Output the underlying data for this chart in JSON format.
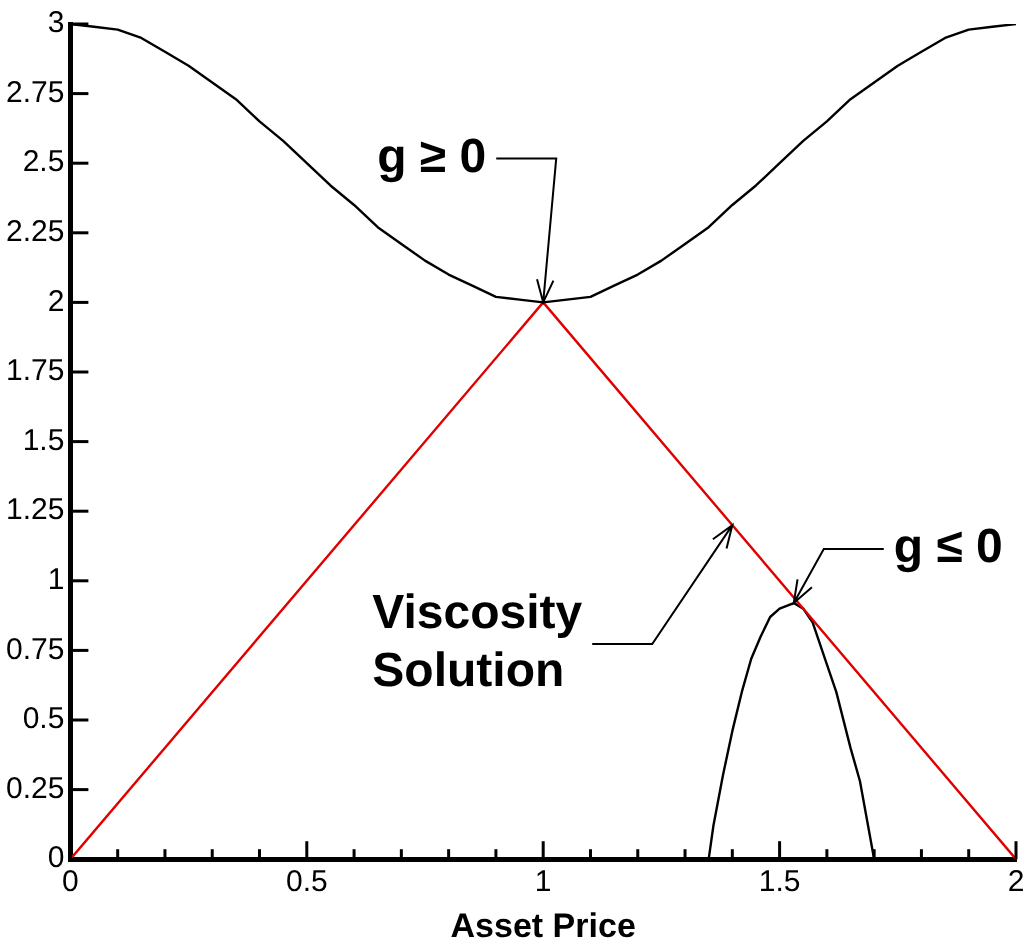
{
  "chart_data": {
    "type": "line",
    "xlabel": "Asset Price",
    "xlim": [
      0,
      2
    ],
    "ylim": [
      0,
      3
    ],
    "xticks": [
      0,
      {
        "value": 0.1,
        "label": null
      },
      {
        "value": 0.2,
        "label": null
      },
      {
        "value": 0.3,
        "label": null
      },
      {
        "value": 0.4,
        "label": null
      },
      0.5,
      {
        "value": 0.6,
        "label": null
      },
      {
        "value": 0.7,
        "label": null
      },
      {
        "value": 0.8,
        "label": null
      },
      {
        "value": 0.9,
        "label": null
      },
      1,
      {
        "value": 1.1,
        "label": null
      },
      {
        "value": 1.2,
        "label": null
      },
      {
        "value": 1.3,
        "label": null
      },
      {
        "value": 1.4,
        "label": null
      },
      1.5,
      {
        "value": 1.6,
        "label": null
      },
      {
        "value": 1.7,
        "label": null
      },
      {
        "value": 1.8,
        "label": null
      },
      {
        "value": 1.9,
        "label": null
      },
      2
    ],
    "yticks": [
      0,
      0.25,
      0.5,
      0.75,
      1,
      1.25,
      1.5,
      1.75,
      2,
      2.25,
      2.5,
      2.75,
      3
    ],
    "series": [
      {
        "color": "#000000",
        "x": [
          0,
          0.05,
          0.1,
          0.15,
          0.2,
          0.25,
          0.3,
          0.35,
          0.4,
          0.45,
          0.5,
          0.55,
          0.6,
          0.65,
          0.7,
          0.75,
          0.8,
          0.85,
          0.9,
          0.95,
          1,
          1.05,
          1.1,
          1.15,
          1.2,
          1.25,
          1.3,
          1.35,
          1.4,
          1.45,
          1.5,
          1.55,
          1.6,
          1.65,
          1.7,
          1.75,
          1.8,
          1.85,
          1.9,
          1.95,
          2
        ],
        "values": [
          3,
          2.99,
          2.98,
          2.95,
          2.9,
          2.85,
          2.79,
          2.73,
          2.65,
          2.58,
          2.5,
          2.42,
          2.35,
          2.27,
          2.21,
          2.15,
          2.1,
          2.06,
          2.02,
          2.01,
          2,
          2.01,
          2.02,
          2.06,
          2.1,
          2.15,
          2.21,
          2.27,
          2.35,
          2.42,
          2.5,
          2.58,
          2.65,
          2.73,
          2.79,
          2.85,
          2.9,
          2.95,
          2.98,
          2.99,
          3
        ]
      },
      {
        "color": "#e00000",
        "x": [
          0,
          1,
          2
        ],
        "values": [
          0,
          2,
          0
        ]
      },
      {
        "color": "#000000",
        "x": [
          1.35,
          1.36,
          1.38,
          1.4,
          1.42,
          1.44,
          1.46,
          1.48,
          1.5,
          1.53,
          1.55,
          1.57,
          1.6,
          1.62,
          1.65,
          1.67,
          1.7
        ],
        "values": [
          0,
          0.12,
          0.3,
          0.46,
          0.6,
          0.72,
          0.8,
          0.87,
          0.9,
          0.92,
          0.9,
          0.85,
          0.7,
          0.6,
          0.4,
          0.28,
          0
        ]
      }
    ],
    "annotations": [
      {
        "text": "g ≥ 0",
        "x": 1,
        "y": 2
      },
      {
        "text": "Viscosity Solution",
        "x": 1.4,
        "y": 1.2
      },
      {
        "text": "g ≤ 0",
        "x": 1.53,
        "y": 0.92
      }
    ]
  }
}
